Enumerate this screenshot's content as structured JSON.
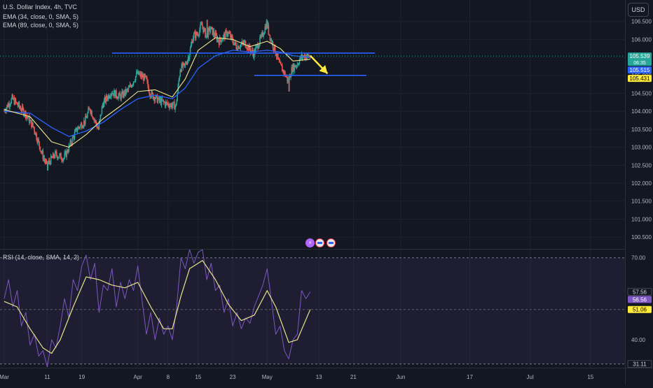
{
  "currency_button": "USD",
  "legend": {
    "main_title": "U.S. Dollar Index, 4h, TVC",
    "ema1": "EMA (34, close, 0, SMA, 5)",
    "ema2": "EMA (89, close, 0, SMA, 5)",
    "rsi": "RSI (14, close, SMA, 14, 2)"
  },
  "colors": {
    "bg": "#131722",
    "grid": "#1e222d",
    "up": "#26a69a",
    "down": "#ef5350",
    "ema34": "#f0e68c",
    "ema89": "#2962ff",
    "rsi": "#7e57c2",
    "rsi_ma": "#e8e48c",
    "line_level": "#2962ff",
    "arrow": "#ffeb3b"
  },
  "events": [
    "bolt-icon",
    "us-flag-icon",
    "us-flag-icon"
  ],
  "chart_data": [
    {
      "type": "candlestick",
      "title": "U.S. Dollar Index, 4h, TVC",
      "x_ticks": [
        {
          "label": "Mar",
          "day": 0
        },
        {
          "label": "11",
          "day": 10
        },
        {
          "label": "19",
          "day": 18
        },
        {
          "label": "Apr",
          "day": 31
        },
        {
          "label": "8",
          "day": 38
        },
        {
          "label": "15",
          "day": 45
        },
        {
          "label": "23",
          "day": 53
        },
        {
          "label": "May",
          "day": 61
        },
        {
          "label": "13",
          "day": 73
        },
        {
          "label": "21",
          "day": 81
        },
        {
          "label": "Jun",
          "day": 92
        },
        {
          "label": "17",
          "day": 108
        },
        {
          "label": "Jul",
          "day": 122
        },
        {
          "label": "15",
          "day": 136
        }
      ],
      "xlim": [
        0,
        144
      ],
      "ylim": [
        100.25,
        107.02
      ],
      "y_ticks": [
        100.5,
        101.0,
        101.5,
        102.0,
        102.5,
        103.0,
        103.5,
        104.0,
        104.5,
        105.0,
        105.5,
        106.0,
        106.5
      ],
      "y_tick_labels": [
        "100.500",
        "101.000",
        "101.500",
        "102.000",
        "102.500",
        "103.000",
        "103.500",
        "104.000",
        "104.500",
        "105.000",
        "105.500",
        "106.000",
        "106.500"
      ],
      "price_path": [
        {
          "day": 0,
          "price": 104.0
        },
        {
          "day": 2,
          "price": 104.35
        },
        {
          "day": 5,
          "price": 103.95
        },
        {
          "day": 7,
          "price": 103.55
        },
        {
          "day": 9,
          "price": 102.8
        },
        {
          "day": 10,
          "price": 102.5
        },
        {
          "day": 12,
          "price": 102.8
        },
        {
          "day": 14,
          "price": 102.7
        },
        {
          "day": 15,
          "price": 102.95
        },
        {
          "day": 17,
          "price": 103.5
        },
        {
          "day": 19,
          "price": 103.75
        },
        {
          "day": 20,
          "price": 104.1
        },
        {
          "day": 22,
          "price": 103.5
        },
        {
          "day": 23,
          "price": 104.2
        },
        {
          "day": 25,
          "price": 104.55
        },
        {
          "day": 27,
          "price": 104.4
        },
        {
          "day": 29,
          "price": 104.6
        },
        {
          "day": 31,
          "price": 105.05
        },
        {
          "day": 33,
          "price": 104.9
        },
        {
          "day": 34,
          "price": 104.5
        },
        {
          "day": 36,
          "price": 104.3
        },
        {
          "day": 38,
          "price": 104.2
        },
        {
          "day": 40,
          "price": 104.15
        },
        {
          "day": 41,
          "price": 105.2
        },
        {
          "day": 42,
          "price": 105.25
        },
        {
          "day": 43,
          "price": 105.55
        },
        {
          "day": 44,
          "price": 106.1
        },
        {
          "day": 45,
          "price": 106.15
        },
        {
          "day": 46,
          "price": 106.4
        },
        {
          "day": 47,
          "price": 106.1
        },
        {
          "day": 48,
          "price": 106.3
        },
        {
          "day": 50,
          "price": 105.95
        },
        {
          "day": 52,
          "price": 106.2
        },
        {
          "day": 54,
          "price": 105.8
        },
        {
          "day": 56,
          "price": 105.9
        },
        {
          "day": 58,
          "price": 105.6
        },
        {
          "day": 60,
          "price": 106.1
        },
        {
          "day": 61,
          "price": 106.45
        },
        {
          "day": 62,
          "price": 106.0
        },
        {
          "day": 63,
          "price": 105.7
        },
        {
          "day": 64,
          "price": 105.3
        },
        {
          "day": 65,
          "price": 105.1
        },
        {
          "day": 66,
          "price": 104.85
        },
        {
          "day": 67,
          "price": 105.2
        },
        {
          "day": 68,
          "price": 105.3
        },
        {
          "day": 69,
          "price": 105.5
        },
        {
          "day": 70,
          "price": 105.55
        },
        {
          "day": 71,
          "price": 105.52
        }
      ],
      "lows": [
        {
          "day": 10,
          "price": 102.35
        },
        {
          "day": 66,
          "price": 104.55
        }
      ],
      "highs": [
        {
          "day": 47,
          "price": 106.55
        },
        {
          "day": 61,
          "price": 106.52
        }
      ],
      "levels": [
        {
          "price": 105.62,
          "from_day": 25,
          "to_day": 86,
          "color": "#2962ff"
        },
        {
          "price": 105.0,
          "from_day": 58,
          "to_day": 84,
          "color": "#2962ff"
        }
      ],
      "current_price_line": 105.539,
      "arrow": {
        "from": {
          "day": 71,
          "price": 105.55
        },
        "to": {
          "day": 75,
          "price": 105.05
        }
      },
      "price_badges": [
        {
          "value": "105.539",
          "sub": "06:35",
          "bg": "#26a69a",
          "fg": "#ffffff"
        },
        {
          "value": "105.515",
          "bg": "#2962ff",
          "fg": "#ffffff"
        },
        {
          "value": "105.431",
          "bg": "#ffeb3b",
          "fg": "#000000"
        }
      ],
      "badge_prices": [
        105.539,
        105.515,
        105.431
      ],
      "ema34": [
        {
          "day": 0,
          "price": 104.05
        },
        {
          "day": 6,
          "price": 103.85
        },
        {
          "day": 11,
          "price": 103.15
        },
        {
          "day": 15,
          "price": 103.0
        },
        {
          "day": 19,
          "price": 103.35
        },
        {
          "day": 23,
          "price": 103.8
        },
        {
          "day": 27,
          "price": 104.15
        },
        {
          "day": 31,
          "price": 104.55
        },
        {
          "day": 35,
          "price": 104.6
        },
        {
          "day": 39,
          "price": 104.4
        },
        {
          "day": 42,
          "price": 104.9
        },
        {
          "day": 45,
          "price": 105.7
        },
        {
          "day": 49,
          "price": 106.05
        },
        {
          "day": 53,
          "price": 106.0
        },
        {
          "day": 57,
          "price": 105.8
        },
        {
          "day": 61,
          "price": 105.95
        },
        {
          "day": 64,
          "price": 105.75
        },
        {
          "day": 67,
          "price": 105.4
        },
        {
          "day": 71,
          "price": 105.45
        }
      ],
      "ema89": [
        {
          "day": 0,
          "price": 104.0
        },
        {
          "day": 6,
          "price": 103.95
        },
        {
          "day": 11,
          "price": 103.55
        },
        {
          "day": 15,
          "price": 103.3
        },
        {
          "day": 19,
          "price": 103.45
        },
        {
          "day": 23,
          "price": 103.7
        },
        {
          "day": 27,
          "price": 104.05
        },
        {
          "day": 31,
          "price": 104.35
        },
        {
          "day": 35,
          "price": 104.45
        },
        {
          "day": 39,
          "price": 104.35
        },
        {
          "day": 42,
          "price": 104.65
        },
        {
          "day": 45,
          "price": 105.2
        },
        {
          "day": 49,
          "price": 105.55
        },
        {
          "day": 53,
          "price": 105.7
        },
        {
          "day": 57,
          "price": 105.65
        },
        {
          "day": 61,
          "price": 105.7
        },
        {
          "day": 64,
          "price": 105.65
        },
        {
          "day": 67,
          "price": 105.55
        },
        {
          "day": 71,
          "price": 105.5
        }
      ]
    },
    {
      "type": "line",
      "title": "RSI (14, close, SMA, 14, 2)",
      "ylim": [
        30,
        73
      ],
      "y_ticks": [
        40.0,
        70.0
      ],
      "y_tick_labels": [
        "40.00",
        "70.00"
      ],
      "band": [
        31.11,
        70.0
      ],
      "midline": 51.06,
      "price_badges": [
        {
          "value": "57.56",
          "bg": "#131722",
          "fg": "#d1d4dc",
          "border": "#434651"
        },
        {
          "value": "56.56",
          "bg": "#7e57c2",
          "fg": "#ffffff"
        },
        {
          "value": "51.06",
          "bg": "#ffeb3b",
          "fg": "#000000"
        },
        {
          "value": "31.11",
          "bg": "#131722",
          "fg": "#d1d4dc",
          "border": "#434651"
        }
      ],
      "badge_values": [
        57.56,
        56.56,
        51.06,
        31.11
      ],
      "series": [
        {
          "name": "RSI",
          "color": "#7e57c2",
          "points": [
            {
              "day": 0,
              "value": 55
            },
            {
              "day": 1,
              "value": 62
            },
            {
              "day": 2,
              "value": 52
            },
            {
              "day": 3,
              "value": 58
            },
            {
              "day": 4,
              "value": 45
            },
            {
              "day": 5,
              "value": 50
            },
            {
              "day": 6,
              "value": 38
            },
            {
              "day": 7,
              "value": 42
            },
            {
              "day": 8,
              "value": 34
            },
            {
              "day": 9,
              "value": 36
            },
            {
              "day": 10,
              "value": 30
            },
            {
              "day": 11,
              "value": 40
            },
            {
              "day": 12,
              "value": 37
            },
            {
              "day": 13,
              "value": 45
            },
            {
              "day": 14,
              "value": 55
            },
            {
              "day": 15,
              "value": 48
            },
            {
              "day": 16,
              "value": 62
            },
            {
              "day": 17,
              "value": 58
            },
            {
              "day": 18,
              "value": 67
            },
            {
              "day": 19,
              "value": 71
            },
            {
              "day": 20,
              "value": 62
            },
            {
              "day": 21,
              "value": 68
            },
            {
              "day": 22,
              "value": 50
            },
            {
              "day": 23,
              "value": 60
            },
            {
              "day": 24,
              "value": 58
            },
            {
              "day": 25,
              "value": 66
            },
            {
              "day": 26,
              "value": 52
            },
            {
              "day": 27,
              "value": 61
            },
            {
              "day": 28,
              "value": 55
            },
            {
              "day": 29,
              "value": 62
            },
            {
              "day": 30,
              "value": 58
            },
            {
              "day": 31,
              "value": 67
            },
            {
              "day": 32,
              "value": 54
            },
            {
              "day": 33,
              "value": 42
            },
            {
              "day": 34,
              "value": 50
            },
            {
              "day": 35,
              "value": 40
            },
            {
              "day": 36,
              "value": 48
            },
            {
              "day": 37,
              "value": 42
            },
            {
              "day": 38,
              "value": 45
            },
            {
              "day": 39,
              "value": 40
            },
            {
              "day": 40,
              "value": 52
            },
            {
              "day": 41,
              "value": 70
            },
            {
              "day": 42,
              "value": 66
            },
            {
              "day": 43,
              "value": 73
            },
            {
              "day": 44,
              "value": 68
            },
            {
              "day": 45,
              "value": 72
            },
            {
              "day": 46,
              "value": 73
            },
            {
              "day": 47,
              "value": 62
            },
            {
              "day": 48,
              "value": 68
            },
            {
              "day": 49,
              "value": 58
            },
            {
              "day": 50,
              "value": 60
            },
            {
              "day": 51,
              "value": 50
            },
            {
              "day": 52,
              "value": 55
            },
            {
              "day": 53,
              "value": 45
            },
            {
              "day": 54,
              "value": 50
            },
            {
              "day": 55,
              "value": 44
            },
            {
              "day": 56,
              "value": 48
            },
            {
              "day": 57,
              "value": 46
            },
            {
              "day": 58,
              "value": 52
            },
            {
              "day": 59,
              "value": 56
            },
            {
              "day": 60,
              "value": 60
            },
            {
              "day": 61,
              "value": 66
            },
            {
              "day": 62,
              "value": 54
            },
            {
              "day": 63,
              "value": 42
            },
            {
              "day": 64,
              "value": 45
            },
            {
              "day": 65,
              "value": 36
            },
            {
              "day": 66,
              "value": 33
            },
            {
              "day": 67,
              "value": 40
            },
            {
              "day": 68,
              "value": 42
            },
            {
              "day": 69,
              "value": 58
            },
            {
              "day": 70,
              "value": 55
            },
            {
              "day": 71,
              "value": 57.56
            }
          ]
        },
        {
          "name": "RSI-based MA",
          "color": "#e8e48c",
          "points": [
            {
              "day": 0,
              "value": 54
            },
            {
              "day": 3,
              "value": 52
            },
            {
              "day": 6,
              "value": 44
            },
            {
              "day": 9,
              "value": 37
            },
            {
              "day": 11,
              "value": 35
            },
            {
              "day": 13,
              "value": 40
            },
            {
              "day": 16,
              "value": 52
            },
            {
              "day": 19,
              "value": 63
            },
            {
              "day": 22,
              "value": 62
            },
            {
              "day": 25,
              "value": 60
            },
            {
              "day": 28,
              "value": 59
            },
            {
              "day": 31,
              "value": 61
            },
            {
              "day": 34,
              "value": 52
            },
            {
              "day": 37,
              "value": 44
            },
            {
              "day": 39,
              "value": 44
            },
            {
              "day": 41,
              "value": 56
            },
            {
              "day": 43,
              "value": 66
            },
            {
              "day": 46,
              "value": 69
            },
            {
              "day": 49,
              "value": 62
            },
            {
              "day": 52,
              "value": 53
            },
            {
              "day": 55,
              "value": 47
            },
            {
              "day": 58,
              "value": 49
            },
            {
              "day": 61,
              "value": 58
            },
            {
              "day": 63,
              "value": 52
            },
            {
              "day": 66,
              "value": 39
            },
            {
              "day": 68,
              "value": 40
            },
            {
              "day": 71,
              "value": 51.06
            }
          ]
        }
      ]
    }
  ]
}
